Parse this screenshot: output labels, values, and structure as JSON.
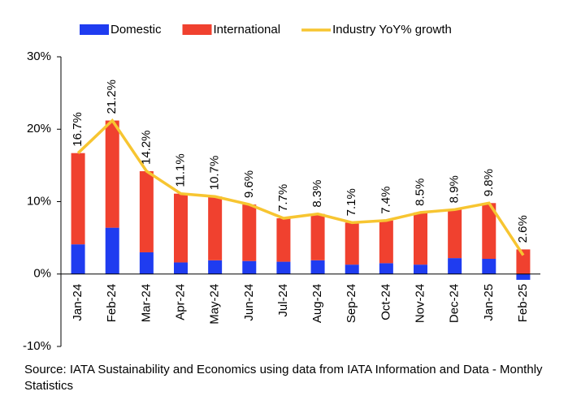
{
  "chart_data": {
    "type": "stacked-bar-line",
    "categories": [
      "Jan-24",
      "Feb-24",
      "Mar-24",
      "Apr-24",
      "May-24",
      "Jun-24",
      "Jul-24",
      "Aug-24",
      "Sep-24",
      "Oct-24",
      "Nov-24",
      "Dec-24",
      "Jan-25",
      "Feb-25"
    ],
    "series": [
      {
        "name": "Domestic",
        "color": "#1f3cf0",
        "kind": "bar",
        "values": [
          4.1,
          6.4,
          3.0,
          1.6,
          1.9,
          1.8,
          1.7,
          1.9,
          1.3,
          1.5,
          1.3,
          2.2,
          2.1,
          -0.8
        ]
      },
      {
        "name": "International",
        "color": "#f0412f",
        "kind": "bar",
        "values": [
          12.6,
          14.8,
          11.2,
          9.5,
          8.8,
          7.8,
          6.0,
          6.4,
          5.8,
          5.9,
          7.2,
          6.7,
          7.7,
          3.4
        ]
      },
      {
        "name": "Industry YoY% growth",
        "color": "#f7c531",
        "kind": "line",
        "values": [
          16.7,
          21.2,
          14.2,
          11.1,
          10.7,
          9.6,
          7.7,
          8.3,
          7.1,
          7.4,
          8.5,
          8.9,
          9.8,
          2.6
        ],
        "value_labels": [
          "16.7%",
          "21.2%",
          "14.2%",
          "11.1%",
          "10.7%",
          "9.6%",
          "7.7%",
          "8.3%",
          "7.1%",
          "7.4%",
          "8.5%",
          "8.9%",
          "9.8%",
          "2.6%"
        ]
      }
    ],
    "ylim": [
      -10,
      30
    ],
    "yticks": [
      {
        "value": -10,
        "label": "-10%"
      },
      {
        "value": 0,
        "label": "0%"
      },
      {
        "value": 10,
        "label": "10%"
      },
      {
        "value": 20,
        "label": "20%"
      },
      {
        "value": 30,
        "label": "30%"
      }
    ],
    "source": "Source: IATA Sustainability and Economics using data from IATA Information and Data - Monthly Statistics"
  }
}
